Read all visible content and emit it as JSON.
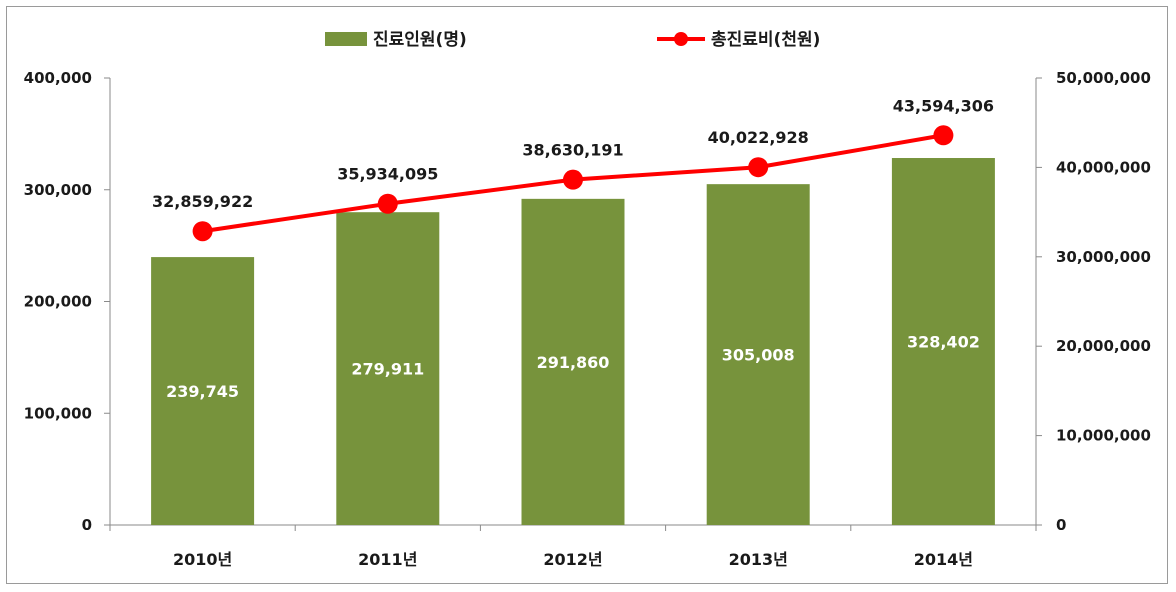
{
  "chart_data": {
    "type": "bar",
    "categories": [
      "2010년",
      "2011년",
      "2012년",
      "2013년",
      "2014년"
    ],
    "series": [
      {
        "name": "진료인원(명)",
        "type": "bar",
        "axis": "left",
        "values": [
          239745,
          279911,
          291860,
          305008,
          328402
        ],
        "labels": [
          "239,745",
          "279,911",
          "291,860",
          "305,008",
          "328,402"
        ]
      },
      {
        "name": "총진료비(천원)",
        "type": "line",
        "axis": "right",
        "values": [
          32859922,
          35934095,
          38630191,
          40022928,
          43594306
        ],
        "labels": [
          "32,859,922",
          "35,934,095",
          "38,630,191",
          "40,022,928",
          "43,594,306"
        ]
      }
    ],
    "y_left": {
      "ylim": [
        0,
        400000
      ],
      "ticks": [
        0,
        100000,
        200000,
        300000,
        400000
      ],
      "tick_labels": [
        "0",
        "100,000",
        "200,000",
        "300,000",
        "400,000"
      ]
    },
    "y_right": {
      "ylim": [
        0,
        50000000
      ],
      "ticks": [
        0,
        10000000,
        20000000,
        30000000,
        40000000,
        50000000
      ],
      "tick_labels": [
        "0",
        "10,000,000",
        "20,000,000",
        "30,000,000",
        "40,000,000",
        "50,000,000"
      ]
    },
    "grid": false,
    "legend": "top-center",
    "colors": {
      "bar": "#77933c",
      "line": "#ff0000"
    }
  }
}
